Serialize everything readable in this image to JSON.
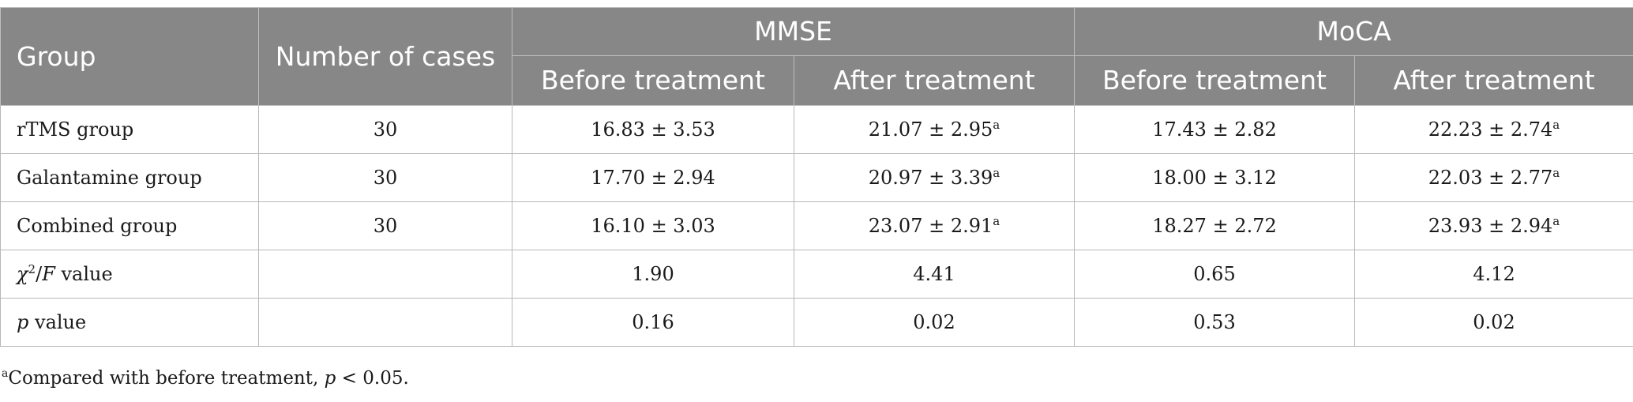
{
  "headers": {
    "group": "Group",
    "cases": "Number of cases",
    "mmse": "MMSE",
    "moca": "MoCA",
    "before": "Before treatment",
    "after": "After treatment"
  },
  "rows": [
    {
      "label": "rTMS group",
      "cases": "30",
      "mmse_before": "16.83 ± 3.53",
      "mmse_after": "21.07 ± 2.95",
      "moca_before": "17.43 ± 2.82",
      "moca_after": "22.23 ± 2.74"
    },
    {
      "label": "Galantamine group",
      "cases": "30",
      "mmse_before": "17.70 ± 2.94",
      "mmse_after": "20.97 ± 3.39",
      "moca_before": "18.00 ± 3.12",
      "moca_after": "22.03 ± 2.77"
    },
    {
      "label": "Combined group",
      "cases": "30",
      "mmse_before": "16.10 ± 3.03",
      "mmse_after": "23.07 ± 2.91",
      "moca_before": "18.27 ± 2.72",
      "moca_after": "23.93 ± 2.94"
    }
  ],
  "stat_rows": [
    {
      "symbol": "χ",
      "exp": "2",
      "slash": "/",
      "fsym": "F",
      "suffix": " value",
      "mmse_before": "1.90",
      "mmse_after": "4.41",
      "moca_before": "0.65",
      "moca_after": "4.12"
    },
    {
      "symbol": "p",
      "suffix": " value",
      "mmse_before": "0.16",
      "mmse_after": "0.02",
      "moca_before": "0.53",
      "moca_after": "0.02"
    }
  ],
  "sup_marker": "a",
  "footnote": {
    "marker": "a",
    "text": "Compared with before treatment, ",
    "p": "p",
    "rest": " < 0.05."
  }
}
